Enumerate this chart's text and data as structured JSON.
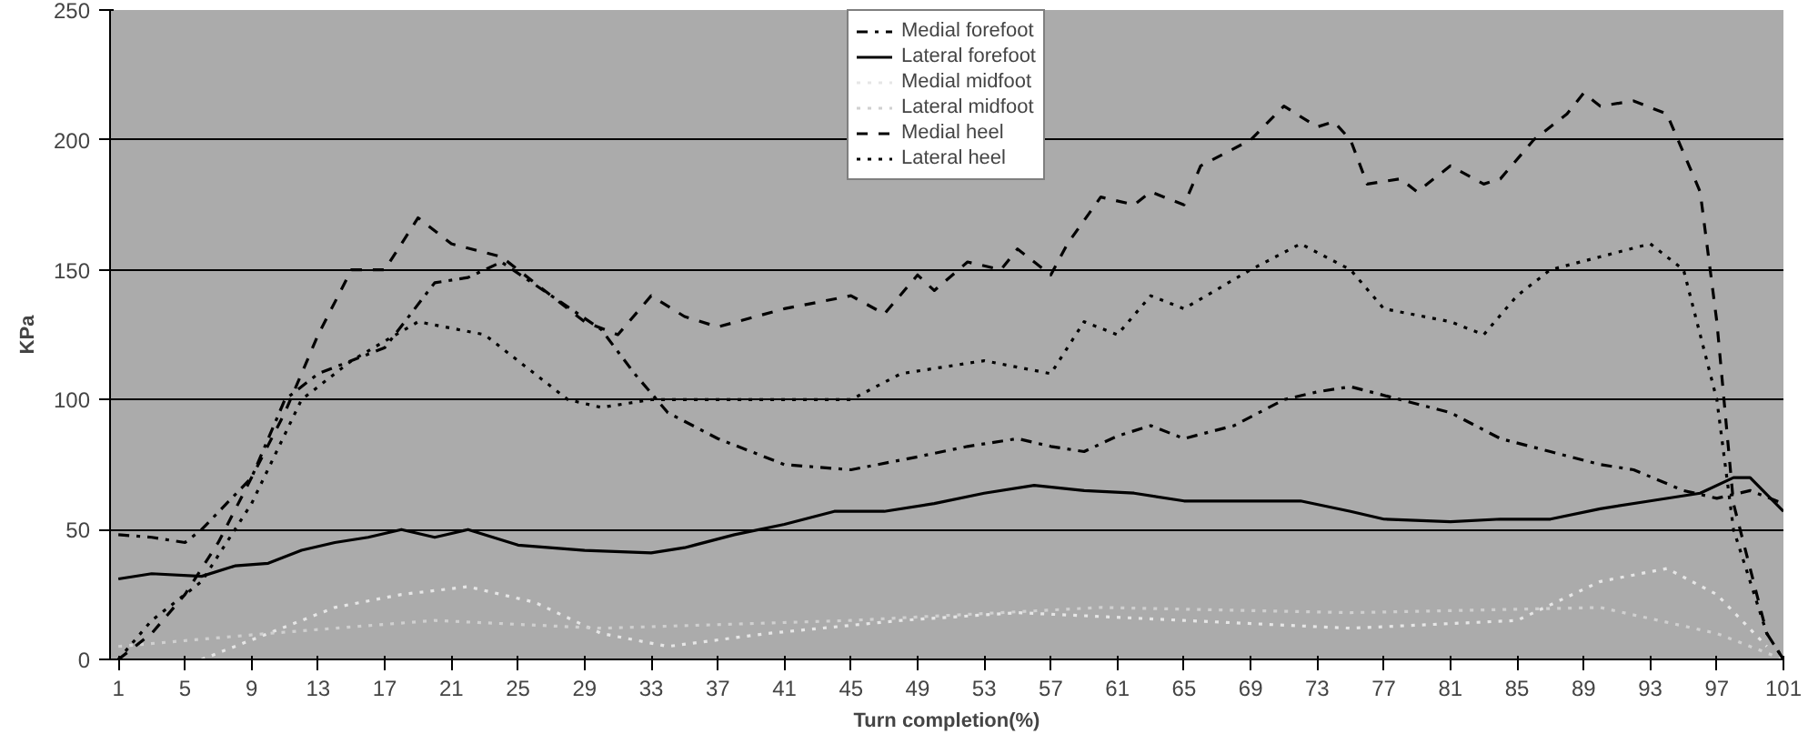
{
  "chart_data": {
    "type": "line",
    "xlabel": "Turn completion(%)",
    "ylabel": "KPa",
    "xlim": [
      0.5,
      101
    ],
    "xticks": [
      1,
      5,
      9,
      13,
      17,
      21,
      25,
      29,
      33,
      37,
      41,
      45,
      49,
      53,
      57,
      61,
      65,
      69,
      73,
      77,
      81,
      85,
      89,
      93,
      97,
      101
    ],
    "ylim": [
      0,
      250
    ],
    "yticks": [
      0,
      50,
      100,
      150,
      200,
      250
    ],
    "grid": "y",
    "legend": "top",
    "marker": "none",
    "series": [
      {
        "name": "Medial forefoot",
        "color": "#000000",
        "line_style": "dashdot",
        "x": [
          1,
          3,
          5,
          6,
          9,
          11,
          13,
          15,
          17,
          20,
          22,
          24,
          27,
          30,
          32,
          34,
          37,
          41,
          45,
          49,
          52,
          55,
          57,
          59,
          61,
          63,
          65,
          68,
          71,
          73,
          75,
          78,
          81,
          84,
          87,
          90,
          92,
          95,
          97,
          99,
          101
        ],
        "values": [
          48,
          47,
          45,
          50,
          70,
          100,
          110,
          115,
          120,
          145,
          147,
          153,
          140,
          127,
          110,
          95,
          85,
          75,
          73,
          78,
          82,
          85,
          82,
          80,
          86,
          90,
          85,
          90,
          100,
          103,
          105,
          100,
          95,
          85,
          80,
          75,
          73,
          65,
          62,
          65,
          60
        ]
      },
      {
        "name": "Lateral forefoot",
        "color": "#000000",
        "line_style": "solid",
        "x": [
          1,
          3,
          6,
          8,
          10,
          12,
          14,
          16,
          18,
          20,
          22,
          25,
          29,
          33,
          35,
          38,
          41,
          44,
          47,
          50,
          53,
          56,
          59,
          62,
          65,
          69,
          72,
          75,
          77,
          81,
          84,
          87,
          90,
          93,
          96,
          98,
          99,
          101
        ],
        "values": [
          31,
          33,
          32,
          36,
          37,
          42,
          45,
          47,
          50,
          47,
          50,
          44,
          42,
          41,
          43,
          48,
          52,
          57,
          57,
          60,
          64,
          67,
          65,
          64,
          61,
          61,
          61,
          57,
          54,
          53,
          54,
          54,
          58,
          61,
          64,
          70,
          70,
          57
        ]
      },
      {
        "name": "Medial midfoot",
        "color": "#e6e6e6",
        "line_style": "dotted",
        "x": [
          6,
          10,
          14,
          18,
          22,
          26,
          30,
          34,
          40,
          48,
          55,
          65,
          75,
          85,
          90,
          94,
          97,
          100
        ],
        "values": [
          0,
          10,
          20,
          25,
          28,
          22,
          10,
          5,
          10,
          15,
          18,
          15,
          12,
          15,
          30,
          35,
          25,
          5
        ]
      },
      {
        "name": "Lateral midfoot",
        "color": "#d0d0d0",
        "line_style": "dotted",
        "x": [
          1,
          10,
          20,
          30,
          45,
          60,
          75,
          90,
          97,
          101
        ],
        "values": [
          5,
          10,
          15,
          12,
          15,
          20,
          18,
          20,
          10,
          0
        ]
      },
      {
        "name": "Medial heel",
        "color": "#000000",
        "line_style": "dashed",
        "x": [
          1,
          3,
          5,
          7,
          9,
          11,
          13,
          15,
          17,
          19,
          21,
          24,
          27,
          29,
          31,
          33,
          35,
          37,
          41,
          45,
          47,
          49,
          50,
          52,
          54,
          55,
          57,
          58,
          60,
          62,
          63,
          65,
          66,
          69,
          71,
          73,
          74,
          75,
          76,
          78,
          79,
          81,
          83,
          84,
          86,
          88,
          89,
          90,
          92,
          94,
          96,
          97,
          98,
          100,
          101
        ],
        "values": [
          0,
          10,
          25,
          45,
          70,
          95,
          125,
          150,
          150,
          170,
          160,
          155,
          140,
          130,
          125,
          140,
          132,
          128,
          135,
          140,
          133,
          148,
          142,
          153,
          150,
          158,
          148,
          160,
          178,
          175,
          180,
          175,
          190,
          200,
          213,
          205,
          207,
          200,
          183,
          185,
          180,
          190,
          183,
          185,
          200,
          210,
          218,
          213,
          215,
          210,
          180,
          130,
          60,
          10,
          0
        ]
      },
      {
        "name": "Lateral heel",
        "color": "#000000",
        "line_style": "dotted",
        "x": [
          1,
          3,
          6,
          9,
          12,
          15,
          19,
          23,
          25,
          28,
          30,
          33,
          38,
          45,
          48,
          53,
          57,
          59,
          61,
          63,
          65,
          69,
          72,
          75,
          77,
          81,
          83,
          85,
          87,
          90,
          93,
          95,
          97,
          98,
          100,
          101
        ],
        "values": [
          0,
          15,
          30,
          60,
          100,
          115,
          130,
          125,
          115,
          100,
          97,
          100,
          100,
          100,
          110,
          115,
          110,
          130,
          125,
          140,
          135,
          150,
          160,
          150,
          135,
          130,
          125,
          140,
          150,
          155,
          160,
          150,
          100,
          50,
          10,
          0
        ]
      }
    ]
  }
}
